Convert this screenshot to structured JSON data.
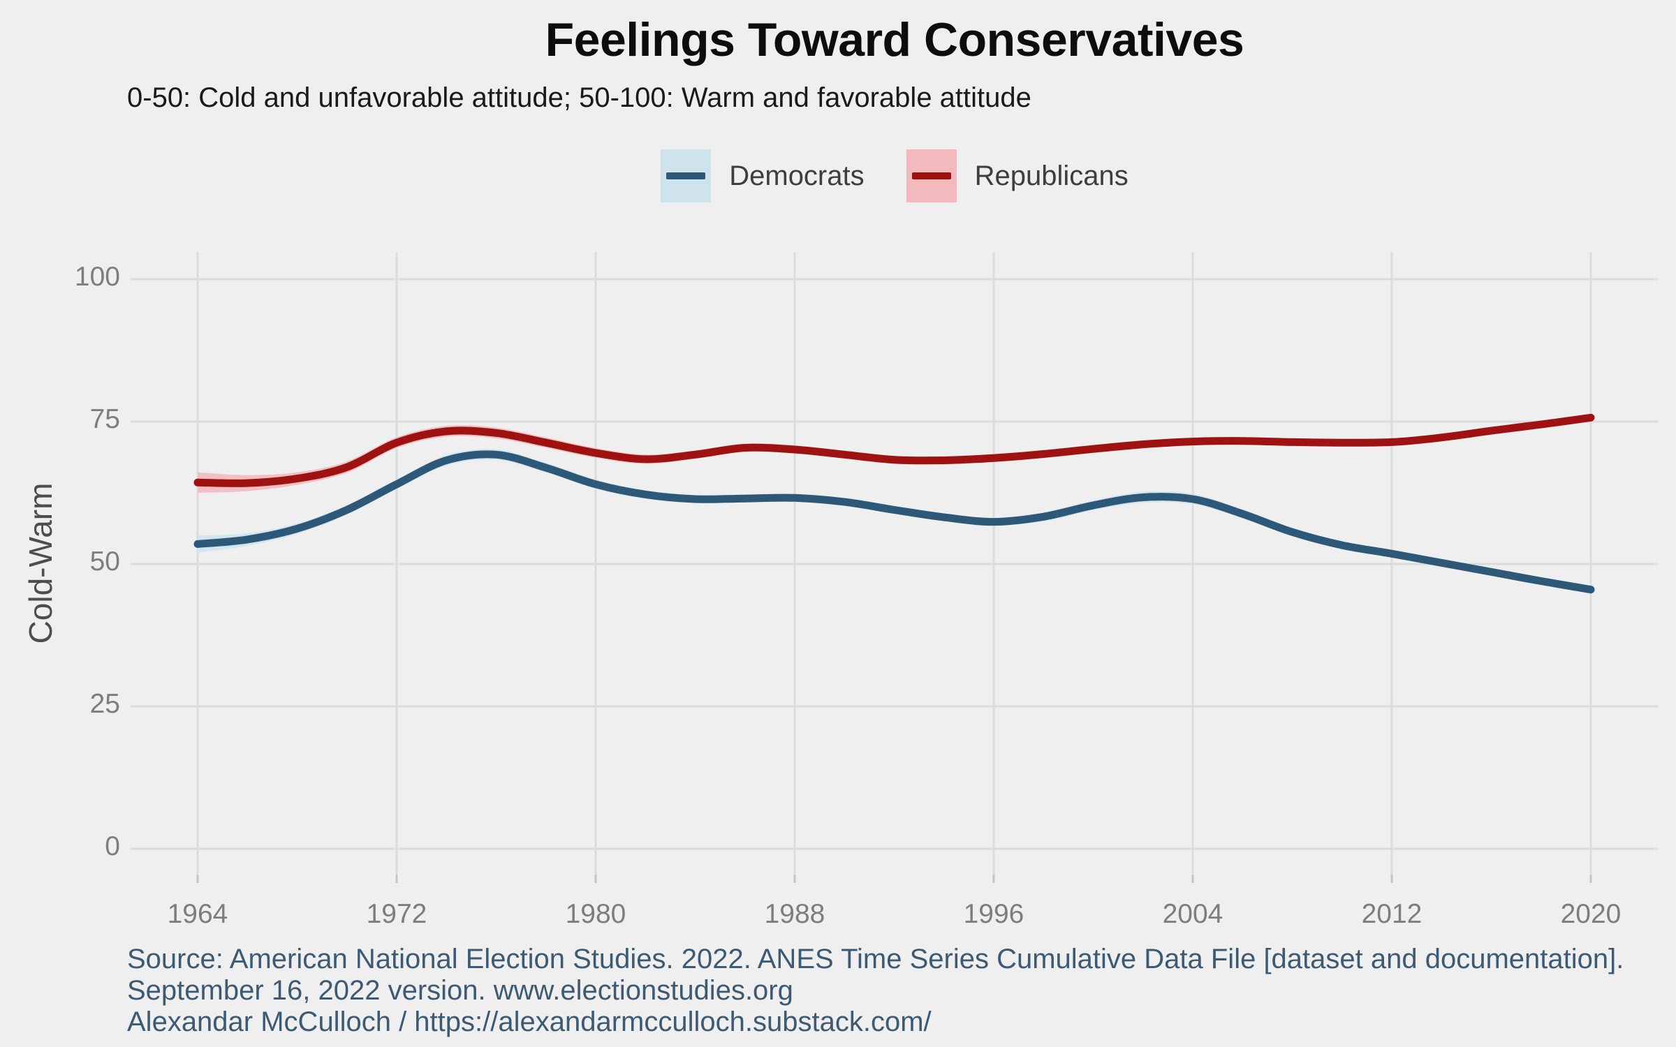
{
  "title": "Feelings Toward Conservatives",
  "subtitle": "0-50: Cold and unfavorable attitude; 50-100: Warm and favorable attitude",
  "caption": {
    "lines": [
      "Source: American National Election Studies. 2022. ANES Time Series Cumulative Data File [dataset and documentation].",
      "September 16, 2022 version. www.electionstudies.org",
      "Alexandar McCulloch / https://alexandarmcculloch.substack.com/"
    ]
  },
  "colors": {
    "background": "#efefef",
    "gridline": "#dcdcdc",
    "tick_mark": "#c4c4c4",
    "tick_label": "#7d7d7d",
    "axis_title": "#4d4d4d",
    "legend_text": "#3d3d3d",
    "title_text": "#0d0d0d",
    "caption_text": "#3c5a73",
    "democrats_line": "#2e5878",
    "democrats_ribbon": "#cfe3ed",
    "republicans_line": "#9e1212",
    "republicans_ribbon": "#f2babc"
  },
  "chart_data": {
    "type": "line",
    "title": "Feelings Toward Conservatives",
    "subtitle": "0-50: Cold and unfavorable attitude; 50-100: Warm and favorable attitude",
    "xlabel": "",
    "ylabel": "Cold-Warm",
    "ylim": [
      0,
      100
    ],
    "xlim": [
      1964,
      2020
    ],
    "grid": true,
    "legend_position": "top-center",
    "xticks": [
      1964,
      1972,
      1980,
      1988,
      1996,
      2004,
      2012,
      2020
    ],
    "yticks": [
      0,
      25,
      50,
      75,
      100
    ],
    "x": [
      1964,
      1966,
      1968,
      1970,
      1972,
      1974,
      1976,
      1978,
      1980,
      1982,
      1984,
      1986,
      1988,
      1990,
      1992,
      1994,
      1996,
      1998,
      2000,
      2002,
      2004,
      2006,
      2008,
      2010,
      2012,
      2014,
      2016,
      2018,
      2020
    ],
    "series": [
      {
        "name": "Democrats",
        "color": "#2e5878",
        "ribbon_color": "#cfe3ed",
        "values": [
          53.5,
          54.3,
          56.2,
          59.5,
          64.0,
          68.2,
          69.2,
          66.9,
          64.0,
          62.2,
          61.4,
          61.5,
          61.6,
          60.9,
          59.5,
          58.2,
          57.4,
          58.3,
          60.3,
          61.7,
          61.4,
          58.8,
          55.6,
          53.3,
          51.8,
          50.2,
          48.6,
          47.0,
          45.5
        ],
        "ci_halfwidth": [
          1.5,
          1.1,
          0.9,
          0.85,
          0.85,
          0.9,
          0.9,
          0.85,
          0.8,
          0.75,
          0.7,
          0.7,
          0.7,
          0.7,
          0.7,
          0.7,
          0.7,
          0.8,
          0.85,
          0.95,
          0.9,
          0.8,
          0.75,
          0.7,
          0.65,
          0.6,
          0.55,
          0.5,
          0.45
        ]
      },
      {
        "name": "Republicans",
        "color": "#9e1212",
        "ribbon_color": "#f2babc",
        "values": [
          64.3,
          64.2,
          65.0,
          67.0,
          71.3,
          73.3,
          73.0,
          71.3,
          69.5,
          68.4,
          69.2,
          70.4,
          70.1,
          69.2,
          68.3,
          68.2,
          68.6,
          69.3,
          70.2,
          71.0,
          71.5,
          71.6,
          71.4,
          71.3,
          71.4,
          72.2,
          73.4,
          74.5,
          75.7
        ],
        "ci_halfwidth": [
          1.8,
          1.4,
          1.1,
          1.0,
          0.95,
          0.95,
          0.95,
          0.9,
          0.85,
          0.8,
          0.75,
          0.7,
          0.7,
          0.7,
          0.7,
          0.7,
          0.7,
          0.7,
          0.7,
          0.7,
          0.65,
          0.6,
          0.6,
          0.6,
          0.6,
          0.55,
          0.5,
          0.45,
          0.4
        ]
      }
    ]
  }
}
